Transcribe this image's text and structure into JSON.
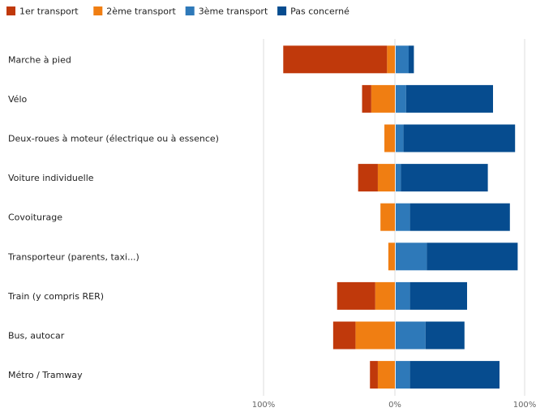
{
  "chart_data": {
    "type": "bar",
    "orientation": "horizontal-diverging",
    "categories": [
      "Marche à pied",
      "Vélo",
      "Deux-roues à moteur (électrique ou à essence)",
      "Voiture individuelle",
      "Covoiturage",
      "Transporteur (parents, taxi...)",
      "Train (y compris RER)",
      "Bus, autocar",
      "Métro / Tramway"
    ],
    "series": [
      {
        "name": "1er transport",
        "color": "#c0390b",
        "side": "left",
        "values": [
          79,
          7,
          0,
          15,
          0,
          0,
          29,
          17,
          6
        ]
      },
      {
        "name": "2ème transport",
        "color": "#f07e12",
        "side": "left",
        "values": [
          6,
          18,
          8,
          13,
          11,
          5,
          15,
          30,
          13
        ]
      },
      {
        "name": "3ème transport",
        "color": "#2e79b9",
        "side": "right",
        "values": [
          10,
          8,
          6,
          4,
          11,
          24,
          11,
          23,
          11
        ]
      },
      {
        "name": "Pas concerné",
        "color": "#064c8f",
        "side": "right",
        "values": [
          4,
          67,
          86,
          67,
          77,
          70,
          44,
          30,
          69
        ]
      }
    ],
    "xlim": [
      -100,
      100
    ],
    "xticks": [
      "100%",
      "0%",
      "100%"
    ],
    "grid": true,
    "legend_position": "top-left"
  }
}
